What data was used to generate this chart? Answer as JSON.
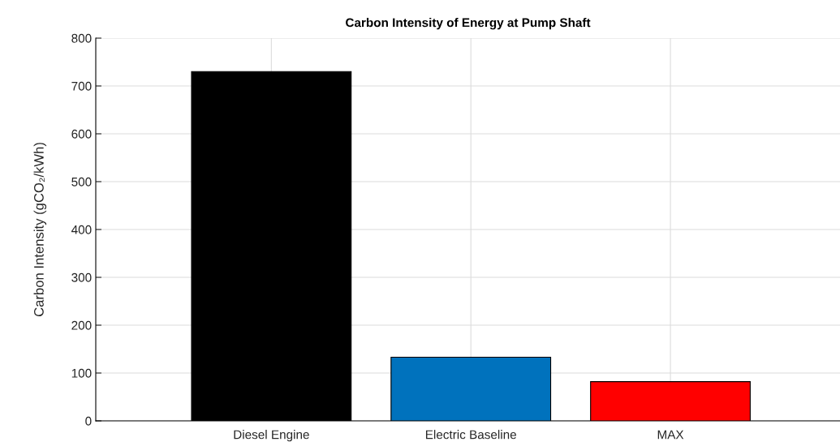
{
  "chart_data": {
    "type": "bar",
    "title": "Carbon Intensity of Energy at Pump Shaft",
    "ylabel": "Carbon Intensity (gCO₂/kWh)",
    "categories": [
      "Diesel Engine",
      "Electric Baseline",
      "MAX"
    ],
    "values": [
      730,
      133,
      82
    ],
    "colors": [
      "#000000",
      "#0072bd",
      "#ff0000"
    ],
    "ylim": [
      0,
      800
    ],
    "yticks": [
      0,
      100,
      200,
      300,
      400,
      500,
      600,
      700,
      800
    ],
    "grid": true
  }
}
